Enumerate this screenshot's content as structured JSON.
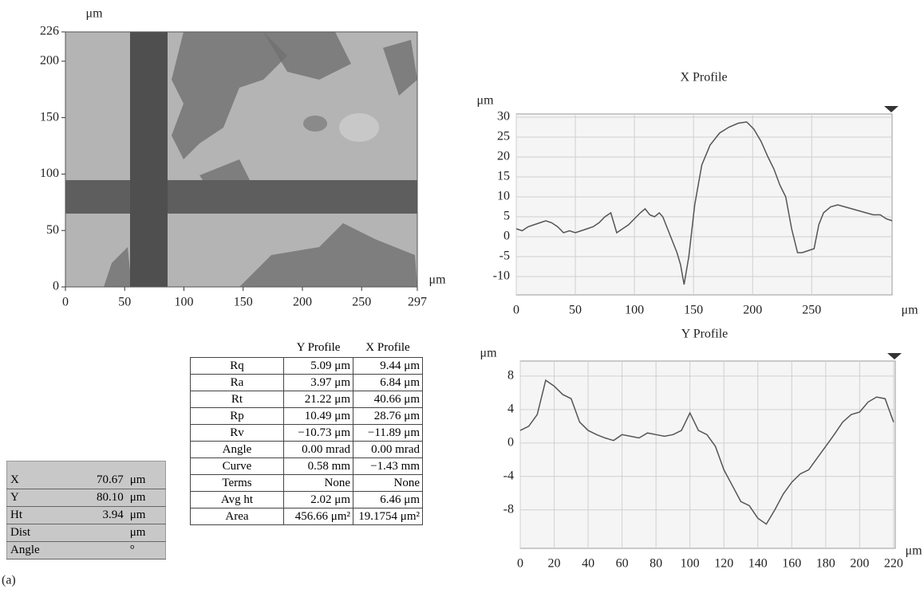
{
  "chart_data": [
    {
      "type": "image",
      "y_label": "μm",
      "x_label": "μm",
      "xlim": [
        0,
        297
      ],
      "xticks": [
        0,
        50,
        100,
        150,
        200,
        250,
        297
      ],
      "ylim": [
        0,
        226
      ],
      "yticks": [
        0,
        50,
        100,
        150,
        200,
        226
      ]
    },
    {
      "type": "line",
      "title": "X Profile",
      "y_label": "μm",
      "x_label": "μm",
      "color": "#555555",
      "grid": true,
      "x": [
        0,
        5,
        10,
        15,
        20,
        25,
        30,
        35,
        40,
        45,
        50,
        55,
        60,
        65,
        70,
        75,
        80,
        85,
        90,
        95,
        100,
        105,
        109,
        113,
        117,
        121,
        124,
        128,
        132,
        136,
        139,
        142,
        146,
        151,
        157,
        164,
        172,
        180,
        188,
        195,
        201,
        207,
        213,
        218,
        223,
        228,
        233,
        238,
        242,
        247,
        252,
        256,
        260,
        266,
        272,
        278,
        284,
        290,
        296,
        302,
        308,
        313,
        318
      ],
      "values": [
        2,
        1.5,
        2.5,
        3,
        3.5,
        4,
        3.5,
        2.5,
        1,
        1.5,
        1,
        1.5,
        2,
        2.5,
        3.5,
        5,
        6,
        1,
        2,
        3,
        4.5,
        6,
        7,
        5.5,
        5,
        6,
        5,
        2,
        -1,
        -4,
        -7,
        -12,
        -5,
        8,
        18,
        23,
        26,
        27.5,
        28.5,
        28.8,
        27,
        24,
        20,
        17,
        13,
        10,
        2,
        -4,
        -4,
        -3.5,
        -3,
        3,
        6,
        7.5,
        8,
        7.5,
        7,
        6.5,
        6,
        5.5,
        5.5,
        4.5,
        4
      ],
      "xlim": [
        0,
        318
      ],
      "xticks": [
        0,
        50,
        100,
        150,
        200,
        250
      ],
      "ylim": [
        -14.6,
        30.8
      ],
      "yticks": [
        -10,
        -5,
        0,
        5,
        10,
        15,
        20,
        25,
        30
      ]
    },
    {
      "type": "line",
      "title": "Y Profile",
      "y_label": "μm",
      "x_label": "μm",
      "color": "#555555",
      "grid": true,
      "x": [
        0,
        5,
        10,
        15,
        20,
        25,
        30,
        35,
        40,
        45,
        50,
        55,
        60,
        65,
        70,
        75,
        80,
        85,
        90,
        95,
        100,
        105,
        110,
        115,
        120,
        125,
        130,
        135,
        140,
        145,
        150,
        155,
        160,
        165,
        170,
        175,
        180,
        185,
        190,
        195,
        200,
        205,
        210,
        215,
        220
      ],
      "values": [
        1.5,
        2,
        3.4,
        7.5,
        6.8,
        5.8,
        5.3,
        2.5,
        1.5,
        1,
        0.6,
        0.3,
        1,
        0.8,
        0.6,
        1.2,
        1,
        0.8,
        1,
        1.5,
        3.6,
        1.5,
        1,
        -0.4,
        -3.2,
        -5.1,
        -7,
        -7.5,
        -9,
        -9.7,
        -8,
        -6.1,
        -4.7,
        -3.7,
        -3.2,
        -1.8,
        -0.4,
        1,
        2.5,
        3.4,
        3.7,
        4.9,
        5.5,
        5.3,
        2.5
      ],
      "xlim": [
        0,
        221
      ],
      "xticks": [
        0,
        20,
        40,
        60,
        80,
        100,
        120,
        140,
        160,
        180,
        200,
        220
      ],
      "ylim": [
        -12.6,
        9.8
      ],
      "yticks": [
        -8,
        -4,
        0,
        4,
        8
      ]
    }
  ],
  "stats_table": {
    "header": [
      "Y Profile",
      "X Profile"
    ],
    "rows": [
      [
        "Rq",
        "5.09 μm",
        "9.44 μm"
      ],
      [
        "Ra",
        "3.97 μm",
        "6.84 μm"
      ],
      [
        "Rt",
        "21.22 μm",
        "40.66 μm"
      ],
      [
        "Rp",
        "10.49 μm",
        "28.76 μm"
      ],
      [
        "Rv",
        "−10.73 μm",
        "−11.89 μm"
      ],
      [
        "Angle",
        "0.00 mrad",
        "0.00 mrad"
      ],
      [
        "Curve",
        "0.58 mm",
        "−1.43 mm"
      ],
      [
        "Terms",
        "None",
        "None"
      ],
      [
        "Avg ht",
        "2.02 μm",
        "6.46 μm"
      ],
      [
        "Area",
        "456.66 μm²",
        "19.1754 μm²"
      ]
    ]
  },
  "cursor_table": {
    "rows": [
      {
        "label": "X",
        "value": "70.67",
        "unit": "μm"
      },
      {
        "label": "Y",
        "value": "80.10",
        "unit": "μm"
      },
      {
        "label": "Ht",
        "value": "3.94",
        "unit": "μm"
      },
      {
        "label": "Dist",
        "unit": "μm"
      },
      {
        "label": "Angle",
        "unit": "°"
      }
    ]
  },
  "caption": "(a)"
}
